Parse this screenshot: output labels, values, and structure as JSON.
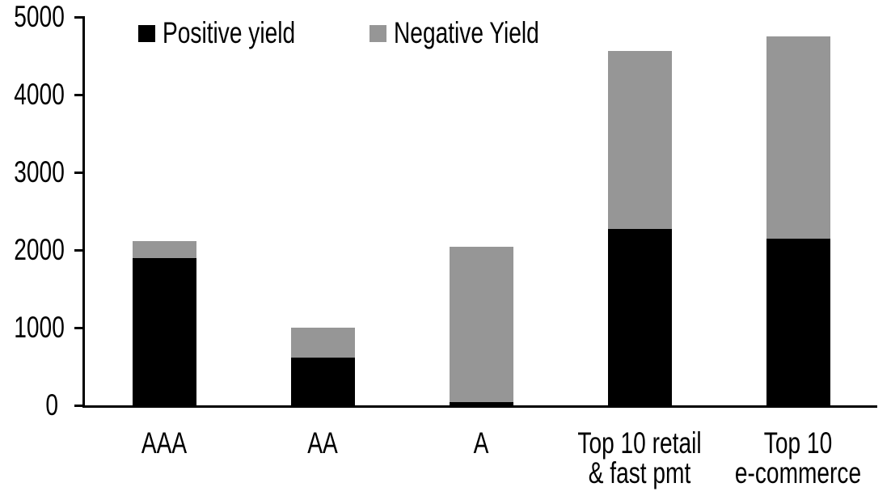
{
  "chart_data": {
    "type": "bar",
    "stacked": true,
    "title": "",
    "xlabel": "",
    "ylabel": "",
    "categories": [
      [
        "AAA"
      ],
      [
        "AA"
      ],
      [
        "A"
      ],
      [
        "Top 10 retail",
        "& fast pmt"
      ],
      [
        "Top 10",
        "e-commerce"
      ]
    ],
    "series": [
      {
        "name": "Positive yield",
        "color": "#000000",
        "values": [
          1900,
          615,
          40,
          2270,
          2150
        ]
      },
      {
        "name": "Negative Yield",
        "color": "#969696",
        "values": [
          220,
          385,
          2000,
          2290,
          2600
        ]
      }
    ],
    "totals": [
      2120,
      1000,
      2040,
      4560,
      4750
    ],
    "ylim": [
      0,
      5000
    ],
    "yticks": [
      0,
      1000,
      2000,
      3000,
      4000,
      5000
    ],
    "grid": false,
    "legend_position": "top-inside",
    "axis_color": "#000000",
    "background_color": "#ffffff"
  }
}
